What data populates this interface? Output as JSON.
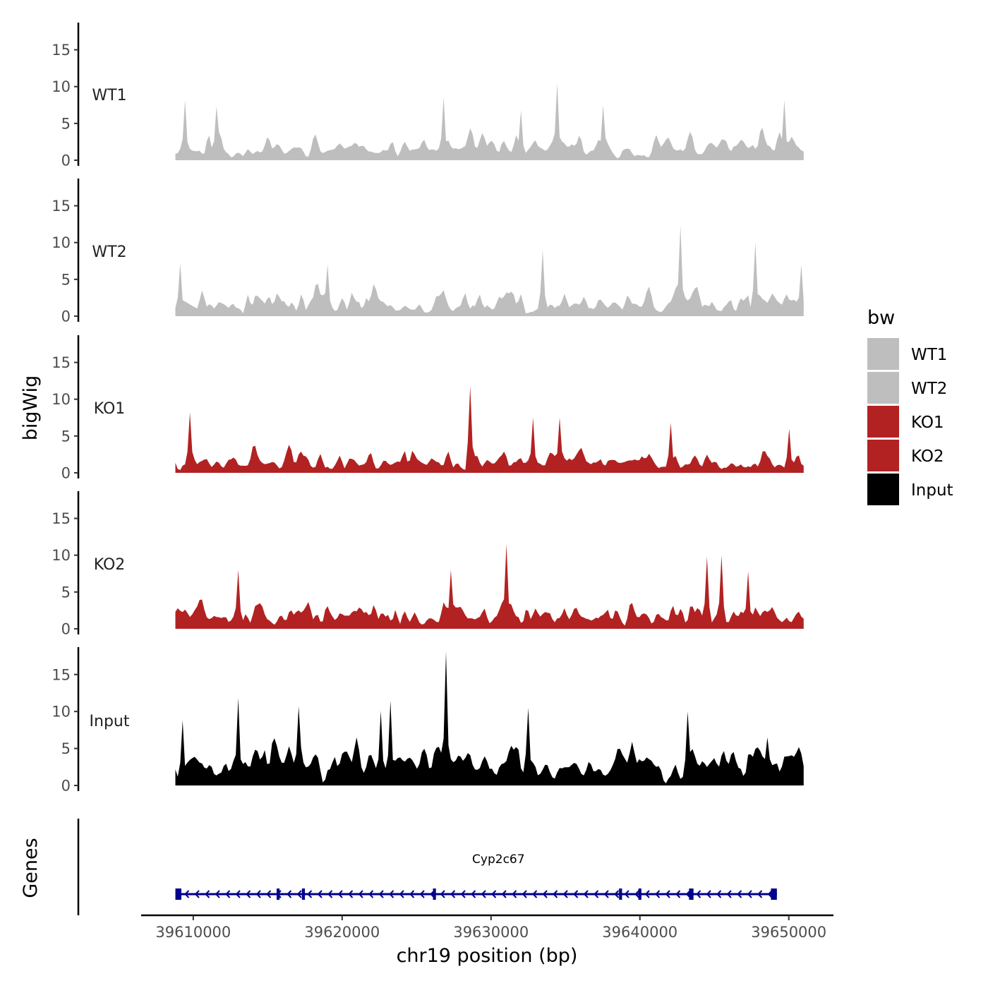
{
  "chart_data": {
    "type": "area",
    "ylabel": "bigWig",
    "xlabel": "chr19 position (bp)",
    "genes_label": "Genes",
    "xlim": [
      39606500,
      39653000
    ],
    "x_ticks": [
      39610000,
      39620000,
      39630000,
      39640000,
      39650000
    ],
    "x_tick_labels": [
      "39610000",
      "39620000",
      "39630000",
      "39640000",
      "39650000"
    ],
    "ylim": [
      0,
      18.7
    ],
    "y_ticks": [
      0,
      5,
      10,
      15
    ],
    "y_tick_labels": [
      "0",
      "5",
      "10",
      "15"
    ],
    "region": [
      39608800,
      39651000
    ],
    "legend": {
      "title": "bw",
      "entries": [
        {
          "label": "WT1",
          "color": "#BEBEBE"
        },
        {
          "label": "WT2",
          "color": "#BEBEBE"
        },
        {
          "label": "KO1",
          "color": "#B22222"
        },
        {
          "label": "KO2",
          "color": "#B22222"
        },
        {
          "label": "Input",
          "color": "#000000"
        }
      ]
    },
    "series": [
      {
        "name": "WT1",
        "color": "#BEBEBE",
        "seed": 11,
        "base": 2.2,
        "amp": 4.0,
        "peaks": [
          {
            "x": 39609500,
            "y": 8.2
          },
          {
            "x": 39611500,
            "y": 7.3
          },
          {
            "x": 39626800,
            "y": 8.6
          },
          {
            "x": 39632000,
            "y": 6.8
          },
          {
            "x": 39634500,
            "y": 10.5
          },
          {
            "x": 39637500,
            "y": 7.5
          },
          {
            "x": 39649700,
            "y": 8.2
          }
        ]
      },
      {
        "name": "WT2",
        "color": "#BEBEBE",
        "seed": 23,
        "base": 2.4,
        "amp": 4.2,
        "peaks": [
          {
            "x": 39609200,
            "y": 7.2
          },
          {
            "x": 39619000,
            "y": 7.0
          },
          {
            "x": 39633500,
            "y": 9.0
          },
          {
            "x": 39642700,
            "y": 12.3
          },
          {
            "x": 39647700,
            "y": 10.0
          },
          {
            "x": 39650800,
            "y": 7.0
          }
        ]
      },
      {
        "name": "KO1",
        "color": "#B22222",
        "seed": 37,
        "base": 1.9,
        "amp": 3.6,
        "peaks": [
          {
            "x": 39609700,
            "y": 8.2
          },
          {
            "x": 39628600,
            "y": 11.8
          },
          {
            "x": 39632800,
            "y": 7.5
          },
          {
            "x": 39634600,
            "y": 7.5
          },
          {
            "x": 39642000,
            "y": 6.8
          },
          {
            "x": 39650000,
            "y": 6.0
          }
        ]
      },
      {
        "name": "KO2",
        "color": "#B22222",
        "seed": 51,
        "base": 2.4,
        "amp": 4.2,
        "peaks": [
          {
            "x": 39613000,
            "y": 8.0
          },
          {
            "x": 39627300,
            "y": 8.0
          },
          {
            "x": 39631000,
            "y": 11.5
          },
          {
            "x": 39644500,
            "y": 9.8
          },
          {
            "x": 39645500,
            "y": 10.0
          },
          {
            "x": 39647300,
            "y": 7.8
          }
        ]
      },
      {
        "name": "Input",
        "color": "#000000",
        "seed": 67,
        "base": 4.6,
        "amp": 4.5,
        "peaks": [
          {
            "x": 39609300,
            "y": 8.8
          },
          {
            "x": 39613000,
            "y": 11.8
          },
          {
            "x": 39617000,
            "y": 10.7
          },
          {
            "x": 39622600,
            "y": 10.1
          },
          {
            "x": 39623300,
            "y": 11.5
          },
          {
            "x": 39627000,
            "y": 18.1
          },
          {
            "x": 39632500,
            "y": 10.5
          },
          {
            "x": 39643200,
            "y": 10.0
          },
          {
            "x": 39648500,
            "y": 6.5
          }
        ]
      }
    ],
    "gene": {
      "name": "Cyp2c67",
      "color": "#00008B",
      "strand": "-",
      "start": 39608800,
      "end": 39649200,
      "exons": [
        [
          39608800,
          39609200
        ],
        [
          39615600,
          39615800
        ],
        [
          39617300,
          39617500
        ],
        [
          39626100,
          39626300
        ],
        [
          39638600,
          39638800
        ],
        [
          39639900,
          39640100
        ],
        [
          39643300,
          39643600
        ],
        [
          39648800,
          39649200
        ]
      ]
    }
  }
}
